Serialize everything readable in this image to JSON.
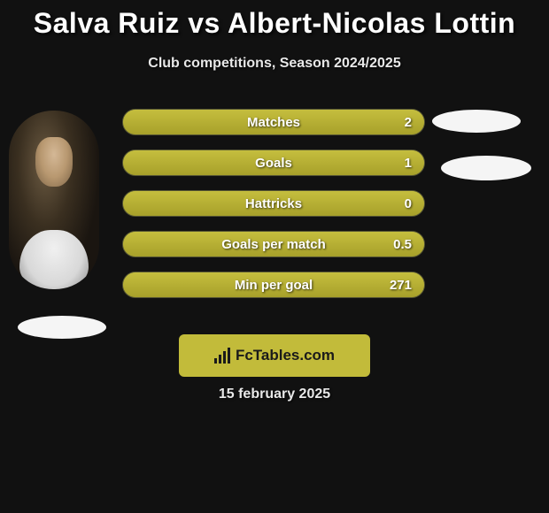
{
  "title": "Salva Ruiz vs Albert-Nicolas Lottin",
  "subtitle": "Club competitions, Season 2024/2025",
  "date": "15 february 2025",
  "logo_text": "FcTables.com",
  "colors": {
    "accent": "#a7a02a",
    "accent_light": "#c5be3e",
    "logo_box": "#c2bb3a",
    "background": "#111111",
    "ellipse": "#f5f5f5",
    "text": "#ffffff"
  },
  "bars": [
    {
      "label": "Matches",
      "value": "2",
      "fill_pct": 100
    },
    {
      "label": "Goals",
      "value": "1",
      "fill_pct": 100
    },
    {
      "label": "Hattricks",
      "value": "0",
      "fill_pct": 100
    },
    {
      "label": "Goals per match",
      "value": "0.5",
      "fill_pct": 100
    },
    {
      "label": "Min per goal",
      "value": "271",
      "fill_pct": 100
    }
  ]
}
